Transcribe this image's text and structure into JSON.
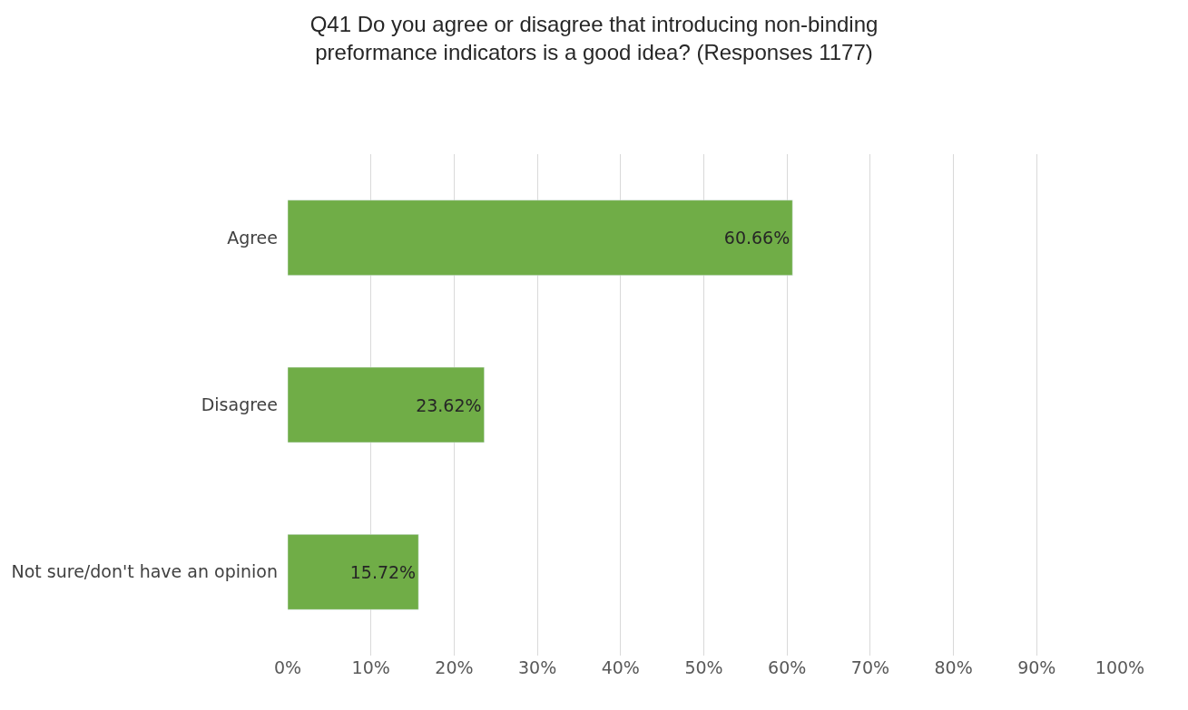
{
  "chart_data": {
    "type": "bar",
    "orientation": "horizontal",
    "title": "Q41 Do you agree or disagree that introducing non-binding preformance indicators is a good idea? (Responses 1177)",
    "categories": [
      "Agree",
      "Disagree",
      "Not sure/don't have an opinion"
    ],
    "values": [
      60.66,
      23.62,
      15.72
    ],
    "value_labels": [
      "60.66%",
      "23.62%",
      "15.72%"
    ],
    "color": "#70ad47",
    "xlim": [
      0,
      100
    ],
    "xticks": [
      {
        "value": 0,
        "label": "0%"
      },
      {
        "value": 10,
        "label": "10%"
      },
      {
        "value": 20,
        "label": "20%"
      },
      {
        "value": 30,
        "label": "30%"
      },
      {
        "value": 40,
        "label": "40%"
      },
      {
        "value": 50,
        "label": "50%"
      },
      {
        "value": 60,
        "label": "60%"
      },
      {
        "value": 70,
        "label": "70%"
      },
      {
        "value": 80,
        "label": "80%"
      },
      {
        "value": 90,
        "label": "90%"
      },
      {
        "value": 100,
        "label": "100%"
      }
    ],
    "grid": "x"
  }
}
